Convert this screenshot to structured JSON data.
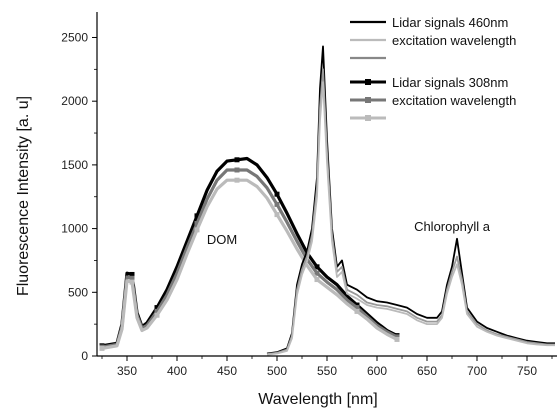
{
  "chart_data": {
    "type": "line",
    "xlabel": "Wavelength [nm]",
    "ylabel": "Fluorescence Intensity [a. u]",
    "xlim": [
      320,
      780
    ],
    "ylim": [
      0,
      2700
    ],
    "xticks": [
      350,
      400,
      450,
      500,
      550,
      600,
      650,
      700,
      750
    ],
    "yticks": [
      0,
      500,
      1000,
      1500,
      2000,
      2500
    ],
    "grid": false,
    "legend": {
      "placement": "top-right",
      "groups": [
        {
          "line1": "Lidar signals 460nm",
          "line2": "excitation wavelength"
        },
        {
          "line1": "Lidar signals 308nm",
          "line2": "excitation wavelength"
        }
      ]
    },
    "annotations": [
      {
        "text": "DOM",
        "x": 445,
        "y": 880
      },
      {
        "text": "Chlorophyll a",
        "x": 675,
        "y": 980
      }
    ],
    "series": [
      {
        "group": "308nm",
        "color": "#000000",
        "marker": "square",
        "x": [
          325,
          340,
          345,
          350,
          355,
          360,
          365,
          370,
          380,
          390,
          400,
          410,
          420,
          430,
          440,
          450,
          460,
          470,
          480,
          490,
          500,
          510,
          520,
          530,
          540,
          550,
          560,
          570,
          580,
          590,
          600,
          610,
          620
        ],
        "y": [
          80,
          100,
          250,
          650,
          640,
          340,
          230,
          260,
          380,
          520,
          700,
          900,
          1100,
          1300,
          1450,
          1530,
          1540,
          1550,
          1500,
          1400,
          1270,
          1120,
          960,
          810,
          700,
          620,
          560,
          470,
          400,
          330,
          260,
          200,
          160
        ]
      },
      {
        "group": "308nm",
        "color": "#777777",
        "marker": "square",
        "x": [
          325,
          340,
          345,
          350,
          355,
          360,
          365,
          370,
          380,
          390,
          400,
          410,
          420,
          430,
          440,
          450,
          460,
          470,
          480,
          490,
          500,
          510,
          520,
          530,
          540,
          550,
          560,
          570,
          580,
          590,
          600,
          610,
          620
        ],
        "y": [
          70,
          90,
          230,
          620,
          610,
          320,
          220,
          240,
          350,
          480,
          650,
          850,
          1040,
          1230,
          1380,
          1460,
          1460,
          1460,
          1410,
          1320,
          1190,
          1050,
          900,
          760,
          650,
          580,
          520,
          440,
          380,
          310,
          240,
          190,
          150
        ]
      },
      {
        "group": "308nm",
        "color": "#bbbbbb",
        "marker": "square",
        "x": [
          325,
          340,
          345,
          350,
          355,
          360,
          365,
          370,
          380,
          390,
          400,
          410,
          420,
          430,
          440,
          450,
          460,
          470,
          480,
          490,
          500,
          510,
          520,
          530,
          540,
          550,
          560,
          570,
          580,
          590,
          600,
          610,
          620
        ],
        "y": [
          60,
          80,
          210,
          590,
          580,
          300,
          200,
          220,
          320,
          440,
          600,
          800,
          990,
          1170,
          1310,
          1380,
          1380,
          1380,
          1330,
          1240,
          1110,
          980,
          840,
          710,
          600,
          540,
          480,
          410,
          350,
          290,
          220,
          170,
          130
        ]
      },
      {
        "group": "460nm",
        "color": "#000000",
        "marker": "none",
        "x": [
          490,
          500,
          510,
          515,
          520,
          525,
          530,
          535,
          540,
          543,
          546,
          550,
          555,
          560,
          565,
          570,
          580,
          590,
          600,
          610,
          620,
          630,
          640,
          650,
          660,
          665,
          670,
          675,
          680,
          685,
          690,
          700,
          710,
          720,
          730,
          740,
          750,
          760,
          770,
          778
        ],
        "y": [
          20,
          30,
          60,
          180,
          560,
          720,
          820,
          1000,
          1400,
          2100,
          2430,
          1700,
          1000,
          700,
          750,
          560,
          520,
          460,
          430,
          420,
          400,
          380,
          330,
          300,
          300,
          350,
          560,
          700,
          920,
          650,
          380,
          270,
          220,
          190,
          160,
          140,
          120,
          110,
          100,
          100
        ]
      },
      {
        "group": "460nm",
        "color": "#999999",
        "marker": "none",
        "x": [
          490,
          500,
          510,
          515,
          520,
          525,
          530,
          535,
          540,
          543,
          546,
          550,
          555,
          560,
          565,
          570,
          580,
          590,
          600,
          610,
          620,
          630,
          640,
          650,
          660,
          665,
          670,
          675,
          680,
          685,
          690,
          700,
          710,
          720,
          730,
          740,
          750,
          760,
          770,
          778
        ],
        "y": [
          15,
          25,
          50,
          160,
          520,
          680,
          780,
          950,
          1320,
          1950,
          2250,
          1600,
          950,
          660,
          700,
          520,
          480,
          420,
          400,
          390,
          370,
          350,
          300,
          270,
          270,
          320,
          520,
          660,
          780,
          600,
          350,
          250,
          200,
          170,
          150,
          130,
          110,
          100,
          90,
          90
        ]
      },
      {
        "group": "460nm",
        "color": "#bbbbbb",
        "marker": "none",
        "x": [
          490,
          500,
          510,
          515,
          520,
          525,
          530,
          535,
          540,
          543,
          546,
          550,
          555,
          560,
          565,
          570,
          580,
          590,
          600,
          610,
          620,
          630,
          640,
          650,
          660,
          665,
          670,
          675,
          680,
          685,
          690,
          700,
          710,
          720,
          730,
          740,
          750,
          760,
          770,
          778
        ],
        "y": [
          10,
          20,
          40,
          140,
          480,
          640,
          740,
          900,
          1250,
          1850,
          2150,
          1520,
          900,
          620,
          660,
          490,
          450,
          400,
          380,
          370,
          350,
          330,
          280,
          250,
          250,
          300,
          490,
          620,
          720,
          560,
          330,
          230,
          190,
          160,
          140,
          120,
          100,
          90,
          85,
          85
        ]
      }
    ]
  }
}
